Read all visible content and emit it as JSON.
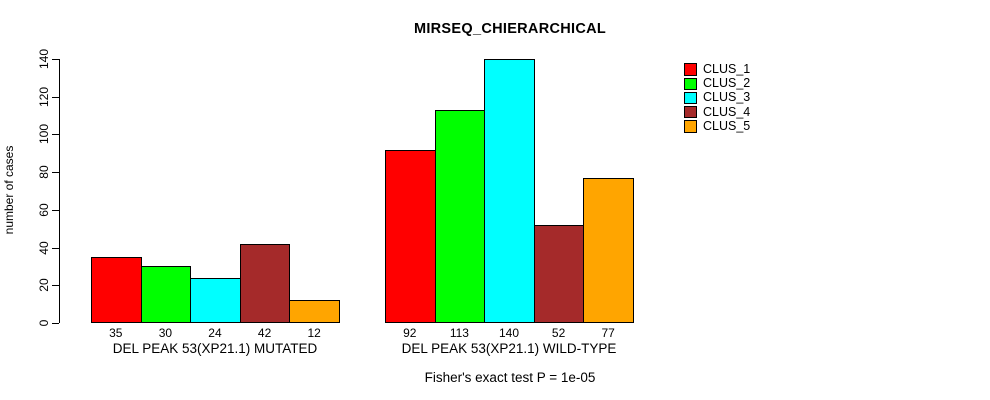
{
  "chart_data": {
    "type": "bar",
    "title": "MIRSEQ_CHIERARCHICAL",
    "ylabel": "number of cases",
    "xlabel": "",
    "ylim": [
      0,
      140
    ],
    "yticks": [
      0,
      20,
      40,
      60,
      80,
      100,
      120,
      140
    ],
    "grid": false,
    "legend_position": "top-right",
    "bar_value_labels_shown": true,
    "categories": [
      "DEL PEAK 53(XP21.1) MUTATED",
      "DEL PEAK 53(XP21.1) WILD-TYPE"
    ],
    "series": [
      {
        "name": "CLUS_1",
        "color": "#FF0000",
        "values": [
          35,
          92
        ]
      },
      {
        "name": "CLUS_2",
        "color": "#00FF00",
        "values": [
          30,
          113
        ]
      },
      {
        "name": "CLUS_3",
        "color": "#00FFFF",
        "values": [
          24,
          140
        ]
      },
      {
        "name": "CLUS_4",
        "color": "#A52A2A",
        "values": [
          42,
          52
        ]
      },
      {
        "name": "CLUS_5",
        "color": "#FFA500",
        "values": [
          12,
          77
        ]
      }
    ],
    "annotation": "Fisher's exact test P = 1e-05"
  },
  "legend": {
    "entries": [
      {
        "label": "CLUS_1",
        "color": "#FF0000"
      },
      {
        "label": "CLUS_2",
        "color": "#00FF00"
      },
      {
        "label": "CLUS_3",
        "color": "#00FFFF"
      },
      {
        "label": "CLUS_4",
        "color": "#A52A2A"
      },
      {
        "label": "CLUS_5",
        "color": "#FFA500"
      }
    ]
  }
}
